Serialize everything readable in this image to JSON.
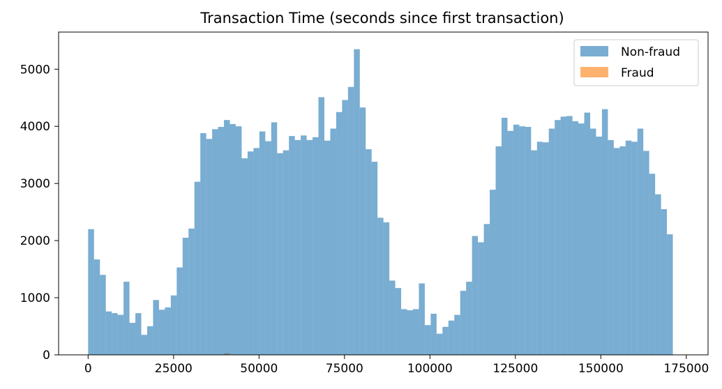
{
  "chart_data": {
    "type": "bar",
    "title": "Transaction Time (seconds since first transaction)",
    "xlabel": "",
    "ylabel": "",
    "xlim": [
      -8636,
      181364
    ],
    "ylim": [
      0,
      5650
    ],
    "x_ticks": [
      0,
      25000,
      50000,
      75000,
      100000,
      125000,
      150000,
      175000
    ],
    "x_tick_labels": [
      "0",
      "25000",
      "50000",
      "75000",
      "100000",
      "125000",
      "150000",
      "175000"
    ],
    "y_ticks": [
      0,
      1000,
      2000,
      3000,
      4000,
      5000
    ],
    "y_tick_labels": [
      "0",
      "1000",
      "2000",
      "3000",
      "4000",
      "5000"
    ],
    "bin_start": 0,
    "bin_width": 1727.92,
    "legend_position": "top-right",
    "series": [
      {
        "name": "Non-fraud",
        "color": "#1f77b4",
        "alpha": 0.6,
        "values": [
          2200,
          1670,
          1400,
          760,
          730,
          700,
          1280,
          560,
          730,
          350,
          500,
          960,
          790,
          830,
          1040,
          1530,
          2050,
          2210,
          3030,
          3880,
          3780,
          3950,
          3990,
          4110,
          4040,
          4000,
          3440,
          3560,
          3620,
          3910,
          3740,
          4070,
          3530,
          3580,
          3830,
          3760,
          3840,
          3760,
          3810,
          4510,
          3750,
          3960,
          4250,
          4460,
          4690,
          5350,
          4330,
          3600,
          3380,
          2400,
          2320,
          1300,
          1170,
          800,
          780,
          800,
          1250,
          520,
          720,
          370,
          490,
          600,
          700,
          1120,
          1280,
          2080,
          1970,
          2290,
          2890,
          3650,
          4150,
          3920,
          4030,
          4000,
          3990,
          3580,
          3730,
          3720,
          3960,
          4110,
          4170,
          4180,
          4090,
          4050,
          4240,
          3960,
          3820,
          4300,
          3760,
          3620,
          3650,
          3750,
          3730,
          3960,
          3570,
          3170,
          2810,
          2550,
          2110
        ]
      },
      {
        "name": "Fraud",
        "color": "#ff7f0e",
        "alpha": 0.6,
        "values": [
          5,
          4,
          3,
          2,
          2,
          3,
          2,
          3,
          2,
          2,
          2,
          2,
          2,
          2,
          2,
          3,
          3,
          3,
          3,
          3,
          3,
          3,
          3,
          30,
          4,
          3,
          2,
          2,
          2,
          2,
          2,
          2,
          2,
          2,
          2,
          2,
          2,
          2,
          2,
          2,
          2,
          2,
          2,
          2,
          2,
          2,
          2,
          2,
          2,
          2,
          2,
          2,
          2,
          2,
          2,
          2,
          2,
          2,
          2,
          2,
          2,
          2,
          2,
          2,
          2,
          2,
          2,
          2,
          2,
          2,
          2,
          2,
          2,
          2,
          2,
          2,
          2,
          2,
          2,
          2,
          2,
          2,
          2,
          2,
          2,
          2,
          2,
          2,
          2,
          2,
          2,
          2,
          2,
          2,
          2,
          2,
          2,
          2,
          2
        ]
      }
    ]
  }
}
